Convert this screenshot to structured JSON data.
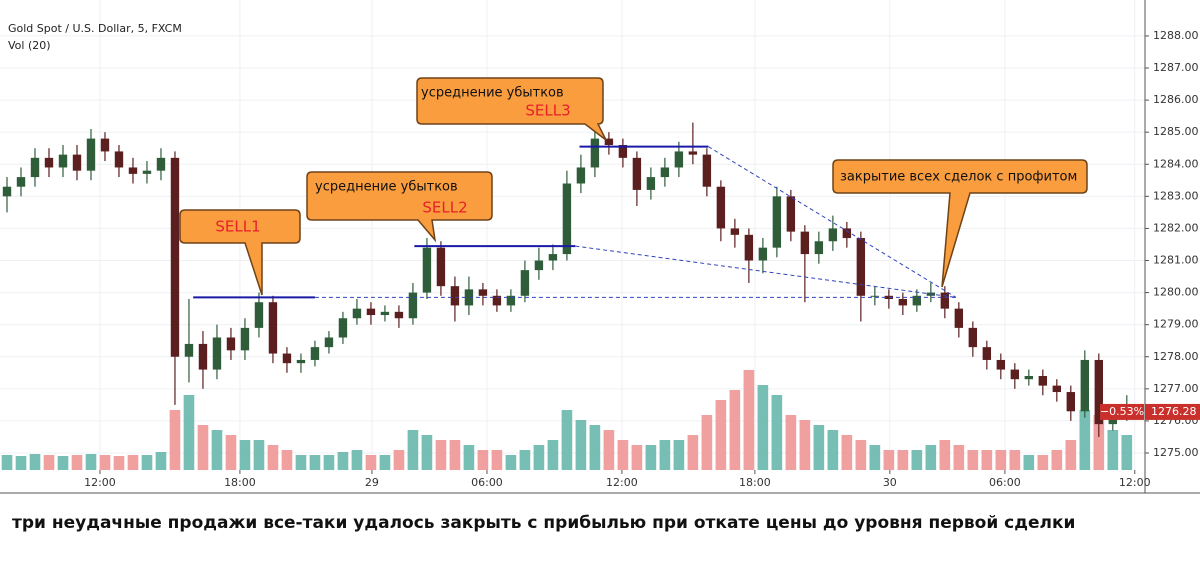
{
  "chart_data": {
    "type": "candlestick",
    "title": "Gold Spot / U.S. Dollar, 5, FXCM",
    "indicator": "Vol (20)",
    "open": [
      1283.0,
      1283.3,
      1283.6,
      1284.2,
      1283.9,
      1284.3,
      1283.8,
      1284.8,
      1284.4,
      1283.9,
      1283.7,
      1283.8,
      1284.2,
      1278.0,
      1278.4,
      1277.6,
      1278.6,
      1278.2,
      1278.9,
      1279.7,
      1278.1,
      1277.8,
      1277.9,
      1278.3,
      1278.6,
      1279.2,
      1279.5,
      1279.3,
      1279.4,
      1279.2,
      1280.0,
      1281.4,
      1280.2,
      1279.6,
      1280.1,
      1279.9,
      1279.6,
      1279.9,
      1280.7,
      1281.0,
      1281.2,
      1283.4,
      1283.9,
      1284.8,
      1284.6,
      1284.2,
      1283.2,
      1283.6,
      1283.9,
      1284.4,
      1284.3,
      1283.3,
      1282.0,
      1281.8,
      1281.0,
      1281.4,
      1283.0,
      1281.9,
      1281.2,
      1281.6,
      1282.0,
      1281.7,
      1279.9,
      1279.9,
      1279.8,
      1279.6,
      1279.9,
      1280.0,
      1279.5,
      1278.9,
      1278.3,
      1277.9,
      1277.6,
      1277.3,
      1277.4,
      1277.1,
      1276.9,
      1276.3,
      1277.9,
      1275.9,
      1276.2
    ],
    "high": [
      1283.6,
      1283.9,
      1284.5,
      1284.5,
      1284.6,
      1284.6,
      1285.1,
      1285.0,
      1284.6,
      1284.2,
      1284.1,
      1284.5,
      1284.4,
      1279.8,
      1278.8,
      1279.0,
      1278.9,
      1279.2,
      1280.0,
      1279.9,
      1278.3,
      1278.1,
      1278.5,
      1278.8,
      1279.4,
      1279.8,
      1279.7,
      1279.6,
      1279.6,
      1280.3,
      1281.7,
      1281.6,
      1280.5,
      1280.5,
      1280.3,
      1280.1,
      1280.1,
      1281.0,
      1281.4,
      1281.5,
      1283.8,
      1284.3,
      1285.2,
      1285.0,
      1284.8,
      1284.4,
      1283.9,
      1284.2,
      1284.7,
      1285.3,
      1284.5,
      1283.5,
      1282.3,
      1282.0,
      1281.7,
      1283.3,
      1283.2,
      1282.1,
      1281.9,
      1282.4,
      1282.2,
      1281.9,
      1280.2,
      1280.1,
      1280.0,
      1280.1,
      1280.3,
      1280.2,
      1279.7,
      1279.1,
      1278.5,
      1278.1,
      1277.8,
      1277.6,
      1277.6,
      1277.3,
      1277.1,
      1278.2,
      1278.1,
      1276.5,
      1276.8
    ],
    "low": [
      1282.5,
      1283.0,
      1283.3,
      1283.6,
      1283.6,
      1283.5,
      1283.5,
      1284.1,
      1283.6,
      1283.4,
      1283.4,
      1283.5,
      1276.5,
      1277.2,
      1277.0,
      1277.3,
      1277.9,
      1277.9,
      1278.6,
      1277.8,
      1277.5,
      1277.5,
      1277.7,
      1278.1,
      1278.4,
      1279.0,
      1279.0,
      1279.1,
      1278.9,
      1279.0,
      1279.8,
      1279.9,
      1279.1,
      1279.3,
      1279.6,
      1279.4,
      1279.4,
      1279.7,
      1280.4,
      1280.7,
      1281.0,
      1283.1,
      1283.6,
      1284.3,
      1283.9,
      1282.7,
      1282.9,
      1283.3,
      1283.6,
      1284.0,
      1283.0,
      1281.6,
      1281.4,
      1280.3,
      1280.6,
      1281.1,
      1281.6,
      1279.7,
      1280.9,
      1281.3,
      1281.4,
      1279.1,
      1279.6,
      1279.5,
      1279.3,
      1279.4,
      1279.7,
      1279.2,
      1278.6,
      1278.0,
      1277.6,
      1277.3,
      1277.0,
      1277.1,
      1276.8,
      1276.6,
      1276.0,
      1276.1,
      1275.5,
      1275.7,
      1276.0
    ],
    "close": [
      1283.3,
      1283.6,
      1284.2,
      1283.9,
      1284.3,
      1283.8,
      1284.8,
      1284.4,
      1283.9,
      1283.7,
      1283.8,
      1284.2,
      1278.0,
      1278.4,
      1277.6,
      1278.6,
      1278.2,
      1278.9,
      1279.7,
      1278.1,
      1277.8,
      1277.9,
      1278.3,
      1278.6,
      1279.2,
      1279.5,
      1279.3,
      1279.4,
      1279.2,
      1280.0,
      1281.4,
      1280.2,
      1279.6,
      1280.1,
      1279.9,
      1279.6,
      1279.9,
      1280.7,
      1281.0,
      1281.2,
      1283.4,
      1283.9,
      1284.8,
      1284.6,
      1284.2,
      1283.2,
      1283.6,
      1283.9,
      1284.4,
      1284.3,
      1283.3,
      1282.0,
      1281.8,
      1281.0,
      1281.4,
      1283.0,
      1281.9,
      1281.2,
      1281.6,
      1282.0,
      1281.7,
      1279.9,
      1279.9,
      1279.8,
      1279.6,
      1279.9,
      1280.0,
      1279.5,
      1278.9,
      1278.3,
      1277.9,
      1277.6,
      1277.3,
      1277.4,
      1277.1,
      1276.9,
      1276.3,
      1277.9,
      1275.9,
      1276.2,
      1276.28
    ],
    "volume": [
      15,
      14,
      16,
      15,
      14,
      15,
      16,
      15,
      14,
      15,
      15,
      18,
      60,
      75,
      45,
      40,
      35,
      30,
      30,
      25,
      20,
      15,
      15,
      15,
      18,
      20,
      15,
      15,
      20,
      40,
      35,
      30,
      30,
      25,
      20,
      20,
      15,
      20,
      25,
      30,
      60,
      50,
      45,
      40,
      30,
      25,
      25,
      30,
      30,
      35,
      55,
      70,
      80,
      100,
      85,
      75,
      55,
      50,
      45,
      40,
      35,
      30,
      25,
      20,
      20,
      20,
      25,
      30,
      25,
      20,
      20,
      20,
      20,
      15,
      15,
      20,
      30,
      60,
      55,
      40,
      35
    ],
    "up_color": "#2f5d3a",
    "down_color": "#5c1f1f",
    "volume_up_color": "#5fb3a8",
    "volume_down_color": "#ef8f8f",
    "xlim": [
      0,
      81.8
    ],
    "xticks": [
      {
        "value": 7.14,
        "label": "12:00"
      },
      {
        "value": 17.14,
        "label": "18:00"
      },
      {
        "value": 26.57,
        "label": "29"
      },
      {
        "value": 34.79,
        "label": "06:00"
      },
      {
        "value": 44.43,
        "label": "12:00"
      },
      {
        "value": 53.93,
        "label": "18:00"
      },
      {
        "value": 63.57,
        "label": "30"
      },
      {
        "value": 71.79,
        "label": "06:00"
      },
      {
        "value": 81.07,
        "label": "12:00"
      }
    ],
    "ylim": [
      1274.47,
      1289.12
    ],
    "yticks": [
      {
        "value": 1275,
        "label": "1275.00"
      },
      {
        "value": 1276,
        "label": "1276.00"
      },
      {
        "value": 1277,
        "label": "1277.00"
      },
      {
        "value": 1278,
        "label": "1278.00"
      },
      {
        "value": 1279,
        "label": "1279.00"
      },
      {
        "value": 1280,
        "label": "1280.00"
      },
      {
        "value": 1281,
        "label": "1281.00"
      },
      {
        "value": 1282,
        "label": "1282.00"
      },
      {
        "value": 1283,
        "label": "1283.00"
      },
      {
        "value": 1284,
        "label": "1284.00"
      },
      {
        "value": 1285,
        "label": "1285.00"
      },
      {
        "value": 1286,
        "label": "1286.00"
      },
      {
        "value": 1287,
        "label": "1287.00"
      },
      {
        "value": 1288,
        "label": "1288.00"
      }
    ],
    "volume_lim": [
      0,
      100
    ],
    "grid": true,
    "last_price": 1276.28,
    "change": {
      "value": -0.53,
      "label": "−0.53%"
    },
    "levels": [
      {
        "price": 1279.85,
        "from": 13.8,
        "to": 22.5
      },
      {
        "price": 1281.45,
        "from": 29.6,
        "to": 41.1
      },
      {
        "price": 1284.55,
        "from": 41.4,
        "to": 50.6
      }
    ],
    "annotations": [
      {
        "lines": [
          "SELL1"
        ]
      },
      {
        "lines": [
          "усреднение убытков",
          "SELL2"
        ]
      },
      {
        "lines": [
          "усреднение убытков",
          "SELL3"
        ]
      },
      {
        "lines": [
          "закрытие всех сделок с профитом"
        ]
      }
    ]
  },
  "caption": "три неудачные продажи все-таки удалось закрыть с прибылью при откате цены до уровня первой сделки"
}
